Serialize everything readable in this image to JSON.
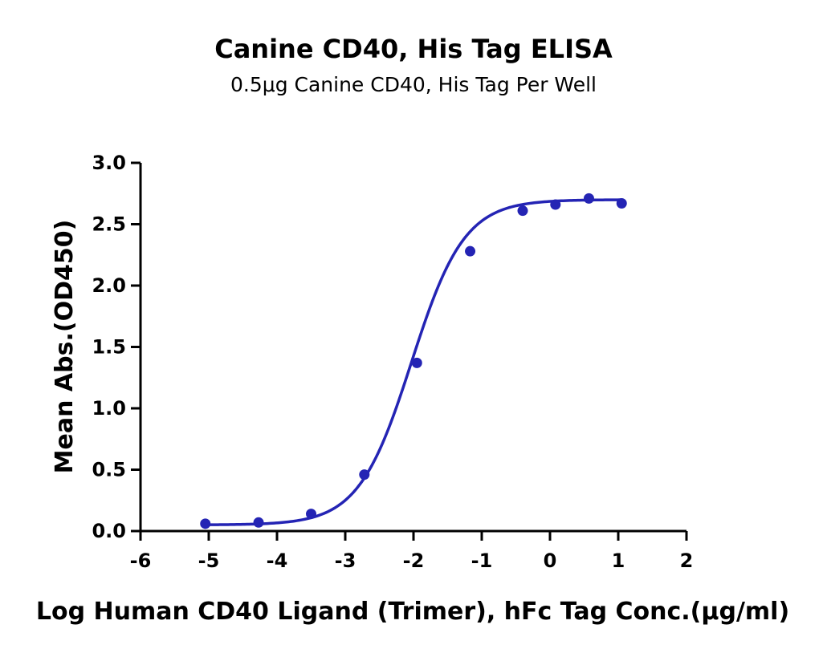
{
  "chart_data": {
    "type": "scatter",
    "title": "Canine CD40, His Tag ELISA",
    "subtitle": "0.5μg Canine CD40, His Tag Per Well",
    "xlabel": "Log Human CD40 Ligand (Trimer), hFc Tag Conc.(μg/ml)",
    "ylabel": "Mean Abs.(OD450)",
    "xlim": [
      -6,
      2
    ],
    "ylim": [
      0,
      3.0
    ],
    "x_ticks": [
      "-6",
      "-5",
      "-4",
      "-3",
      "-2",
      "-1",
      "0",
      "1",
      "2"
    ],
    "y_ticks": [
      "0.0",
      "0.5",
      "1.0",
      "1.5",
      "2.0",
      "2.5",
      "3.0"
    ],
    "grid": false,
    "legend": "none",
    "series": [
      {
        "color": "#2424b4",
        "fit": "sigmoidal (4PL) curve",
        "x": [
          -5.05,
          -4.27,
          -3.5,
          -2.72,
          -1.95,
          -1.17,
          -0.4,
          0.08,
          0.57,
          1.05
        ],
        "y": [
          0.06,
          0.07,
          0.14,
          0.46,
          1.37,
          2.28,
          2.61,
          2.66,
          2.71,
          2.67
        ]
      }
    ]
  }
}
